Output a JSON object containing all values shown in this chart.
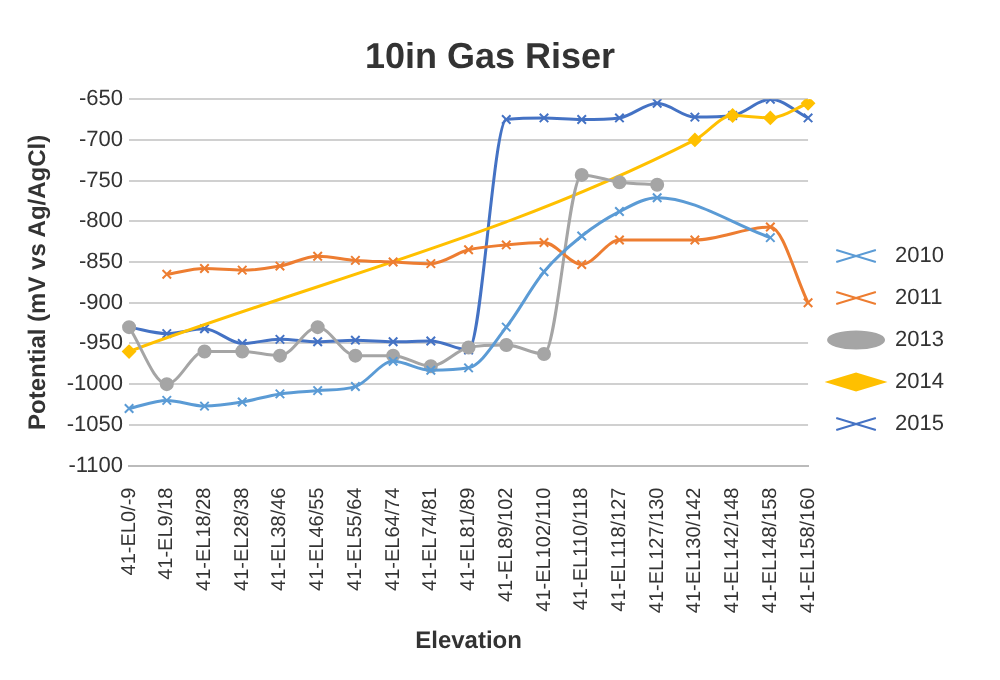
{
  "chart_data": {
    "type": "line",
    "title": "10in Gas Riser",
    "xlabel": "Elevation",
    "ylabel": "Potential (mV vs Ag/AgCl)",
    "categories": [
      "41-EL0/-9",
      "41-EL9/18",
      "41-EL18/28",
      "41-EL28/38",
      "41-EL38/46",
      "41-EL46/55",
      "41-EL55/64",
      "41-EL64/74",
      "41-EL74/81",
      "41-EL81/89",
      "41-EL89/102",
      "41-EL102/110",
      "41-EL110/118",
      "41-EL118/127",
      "41-EL127/130",
      "41-EL130/142",
      "41-EL142/148",
      "41-EL148/158",
      "41-EL158/160"
    ],
    "series": [
      {
        "name": "2010",
        "color": "#5b9bd5",
        "marker": "cross",
        "values": [
          -1030,
          -1020,
          -1027,
          -1022,
          -1012,
          -1008,
          -1003,
          -972,
          -983,
          -980,
          -930,
          -862,
          -818,
          -788,
          -771,
          null,
          null,
          -820,
          null
        ]
      },
      {
        "name": "2011",
        "color": "#ed7d31",
        "marker": "cross",
        "values": [
          null,
          -865,
          -858,
          -860,
          -855,
          -843,
          -848,
          -850,
          -852,
          -835,
          -829,
          -826,
          -853,
          -823,
          null,
          -823,
          null,
          -807,
          -900
        ]
      },
      {
        "name": "2013",
        "color": "#a5a5a5",
        "marker": "circle",
        "values": [
          -930,
          -1000,
          -960,
          -960,
          -965,
          -930,
          -965,
          -965,
          -978,
          -955,
          -952,
          -963,
          -743,
          -752,
          -755,
          null,
          null,
          null,
          null
        ]
      },
      {
        "name": "2014",
        "color": "#ffc000",
        "marker": "diamond",
        "values": [
          -960,
          null,
          null,
          null,
          null,
          null,
          null,
          null,
          null,
          null,
          null,
          null,
          null,
          null,
          null,
          -700,
          -670,
          -673,
          -655
        ]
      },
      {
        "name": "2015",
        "color": "#4472c4",
        "marker": "cross",
        "values": [
          -930,
          -938,
          -932,
          -950,
          -945,
          -948,
          -946,
          -948,
          -947,
          -958,
          -675,
          -673,
          -675,
          -673,
          -655,
          -672,
          -670,
          -650,
          -673
        ]
      }
    ],
    "ylim": [
      -1100,
      -650
    ],
    "yticks": [
      -1100,
      -1050,
      -1000,
      -950,
      -900,
      -850,
      -800,
      -750,
      -700,
      -650
    ],
    "grid": "y",
    "legend": "right",
    "line_style": "solid"
  }
}
